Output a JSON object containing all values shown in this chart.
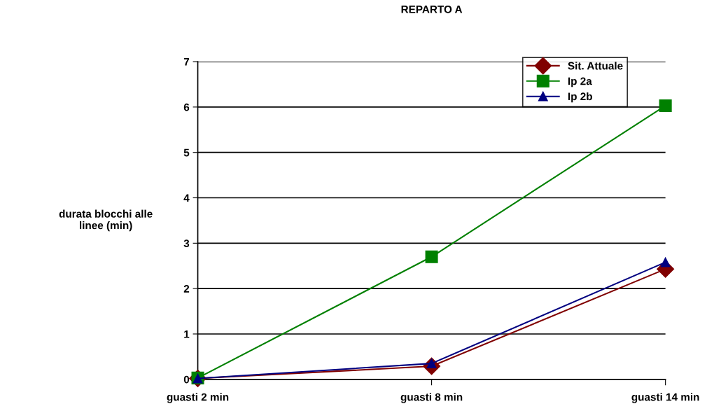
{
  "chart_data": {
    "type": "line",
    "title": "REPARTO A",
    "ylabel": "durata blocchi alle\nlinee (min)",
    "categories": [
      "guasti 2 min",
      "guasti 8 min",
      "guasti 14 min"
    ],
    "series": [
      {
        "name": "Sit. Attuale",
        "color": "#800000",
        "marker": "diamond",
        "values": [
          0.02,
          0.29,
          2.43
        ]
      },
      {
        "name": "Ip 2a",
        "color": "#008000",
        "marker": "square",
        "values": [
          0.03,
          2.7,
          6.03
        ]
      },
      {
        "name": "Ip 2b",
        "color": "#000080",
        "marker": "triangle",
        "values": [
          0.02,
          0.35,
          2.58
        ]
      }
    ],
    "ylim": [
      0,
      7
    ],
    "yticks": [
      0,
      1,
      2,
      3,
      4,
      5,
      6,
      7
    ],
    "grid": "y",
    "legend": "top right",
    "line_style": "solid"
  }
}
